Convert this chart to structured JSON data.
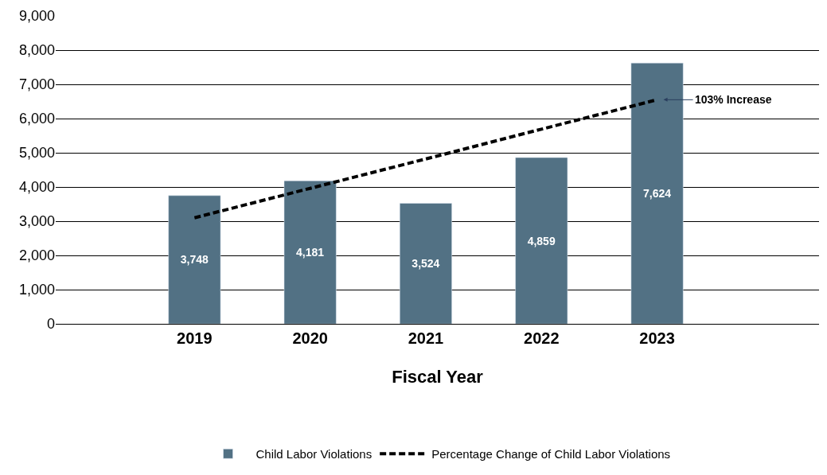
{
  "chart_data": {
    "type": "bar",
    "categories": [
      "2019",
      "2020",
      "2021",
      "2022",
      "2023"
    ],
    "xlabel": "Fiscal Year",
    "series": [
      {
        "name": "Child Labor Violations",
        "color": "#527184",
        "values": [
          3748,
          4181,
          3524,
          4859,
          7624
        ],
        "value_labels": [
          "3,748",
          "4,181",
          "3,524",
          "4,859",
          "7,624"
        ]
      },
      {
        "name": "Percentage Change of Child Labor Violations",
        "type": "line",
        "color": "#000000",
        "line_style": "dashed",
        "values": [
          3100,
          3960,
          4820,
          5690,
          6550
        ]
      }
    ],
    "ylim": [
      0,
      9000
    ],
    "yticks": [
      0,
      {
        "value": 1000,
        "label": "1,000"
      },
      {
        "value": 2000,
        "label": "2,000"
      },
      {
        "value": 3000,
        "label": "3,000"
      },
      {
        "value": 4000,
        "label": "4,000"
      },
      {
        "value": 5000,
        "label": "5,000"
      },
      {
        "value": 6000,
        "label": "6,000"
      },
      {
        "value": 7000,
        "label": "7,000"
      },
      {
        "value": 8000,
        "label": "8,000"
      },
      {
        "value": 9000,
        "label": "9,000"
      }
    ],
    "grid": "y",
    "legend": "bottom",
    "annotations": [
      {
        "text": "103% Increase",
        "x": "2023",
        "y": 6550
      }
    ]
  }
}
